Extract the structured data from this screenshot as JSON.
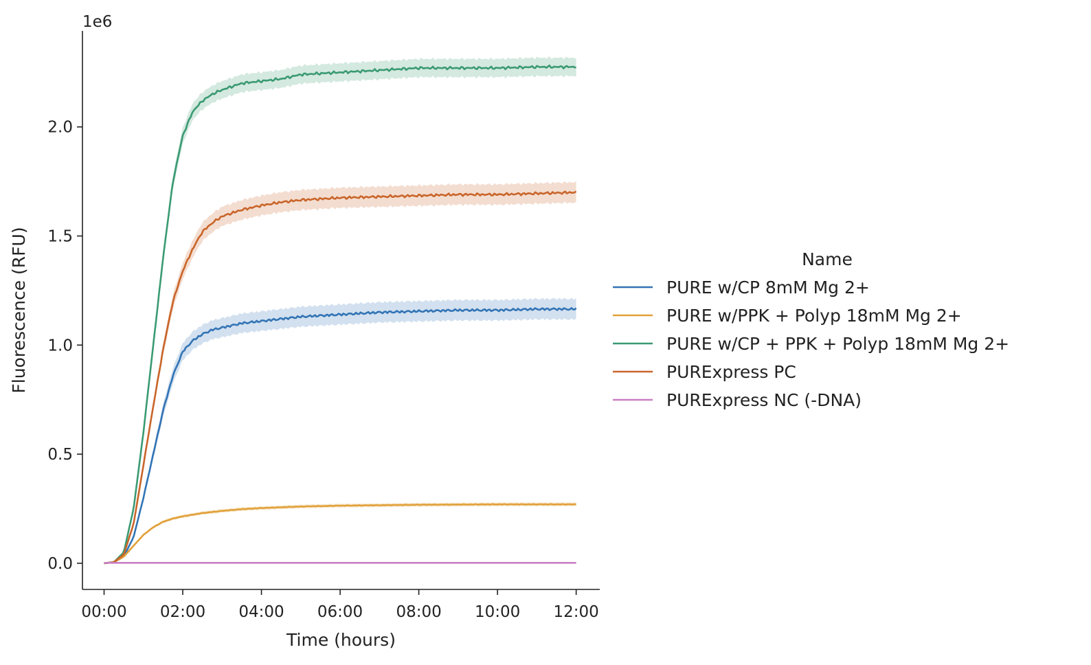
{
  "chart_data": {
    "type": "line",
    "title": "",
    "xlabel": "Time (hours)",
    "ylabel": "Fluorescence (RFU)",
    "y_offset_label": "1e6",
    "xlim_hours": [
      -0.55,
      12.6
    ],
    "ylim": [
      -0.12,
      2.44
    ],
    "x_ticks": [
      {
        "value": 0,
        "label": "00:00"
      },
      {
        "value": 2,
        "label": "02:00"
      },
      {
        "value": 4,
        "label": "04:00"
      },
      {
        "value": 6,
        "label": "06:00"
      },
      {
        "value": 8,
        "label": "08:00"
      },
      {
        "value": 10,
        "label": "10:00"
      },
      {
        "value": 12,
        "label": "12:00"
      }
    ],
    "y_ticks": [
      {
        "value": 0.0,
        "label": "0.0"
      },
      {
        "value": 0.5,
        "label": "0.5"
      },
      {
        "value": 1.0,
        "label": "1.0"
      },
      {
        "value": 1.5,
        "label": "1.5"
      },
      {
        "value": 2.0,
        "label": "2.0"
      }
    ],
    "grid": false,
    "legend": {
      "title": "Name",
      "position": "right-center"
    },
    "series": [
      {
        "name": "PURE w/CP 8mM Mg 2+",
        "color": "#3274b5",
        "x": [
          0,
          0.25,
          0.5,
          0.75,
          1.0,
          1.25,
          1.5,
          1.75,
          2.0,
          2.25,
          2.5,
          2.75,
          3.0,
          3.5,
          4.0,
          4.5,
          5.0,
          5.5,
          6.0,
          7.0,
          8.0,
          9.0,
          10.0,
          11.0,
          12.0
        ],
        "y": [
          0.0,
          0.005,
          0.03,
          0.12,
          0.3,
          0.5,
          0.7,
          0.86,
          0.97,
          1.02,
          1.05,
          1.07,
          1.08,
          1.1,
          1.11,
          1.12,
          1.13,
          1.135,
          1.14,
          1.15,
          1.155,
          1.16,
          1.16,
          1.165,
          1.165
        ],
        "band": 0.045
      },
      {
        "name": "PURE w/PPK + Polyp 18mM Mg 2+",
        "color": "#e1a038",
        "x": [
          0,
          0.25,
          0.5,
          0.75,
          1.0,
          1.25,
          1.5,
          1.75,
          2.0,
          2.5,
          3.0,
          3.5,
          4.0,
          5.0,
          6.0,
          7.0,
          8.0,
          9.0,
          10.0,
          11.0,
          12.0
        ],
        "y": [
          0.0,
          0.005,
          0.03,
          0.08,
          0.13,
          0.165,
          0.19,
          0.205,
          0.215,
          0.23,
          0.24,
          0.248,
          0.253,
          0.26,
          0.264,
          0.266,
          0.268,
          0.269,
          0.27,
          0.27,
          0.27
        ],
        "band": 0.007
      },
      {
        "name": "PURE w/CP + PPK + Polyp 18mM Mg 2+",
        "color": "#3a9a72",
        "x": [
          0,
          0.25,
          0.5,
          0.75,
          1.0,
          1.25,
          1.5,
          1.75,
          2.0,
          2.25,
          2.5,
          2.75,
          3.0,
          3.5,
          4.0,
          4.5,
          5.0,
          6.0,
          7.0,
          8.0,
          9.0,
          10.0,
          11.0,
          12.0
        ],
        "y": [
          0.0,
          0.005,
          0.05,
          0.25,
          0.6,
          1.0,
          1.4,
          1.75,
          1.96,
          2.07,
          2.12,
          2.15,
          2.17,
          2.2,
          2.21,
          2.22,
          2.24,
          2.25,
          2.26,
          2.27,
          2.27,
          2.27,
          2.275,
          2.275
        ],
        "band": 0.04
      },
      {
        "name": "PURExpress PC",
        "color": "#c9652a",
        "x": [
          0,
          0.25,
          0.5,
          0.75,
          1.0,
          1.25,
          1.5,
          1.75,
          2.0,
          2.25,
          2.5,
          2.75,
          3.0,
          3.5,
          4.0,
          4.5,
          5.0,
          6.0,
          7.0,
          8.0,
          9.0,
          10.0,
          11.0,
          12.0
        ],
        "y": [
          0.0,
          0.005,
          0.04,
          0.18,
          0.45,
          0.72,
          0.98,
          1.2,
          1.34,
          1.44,
          1.52,
          1.56,
          1.59,
          1.62,
          1.64,
          1.655,
          1.665,
          1.675,
          1.68,
          1.685,
          1.69,
          1.69,
          1.695,
          1.7
        ],
        "band": 0.045
      },
      {
        "name": "PURExpress NC (-DNA)",
        "color": "#c97fc4",
        "x": [
          0,
          12
        ],
        "y": [
          0.002,
          0.002
        ],
        "band": 0.002
      }
    ]
  }
}
